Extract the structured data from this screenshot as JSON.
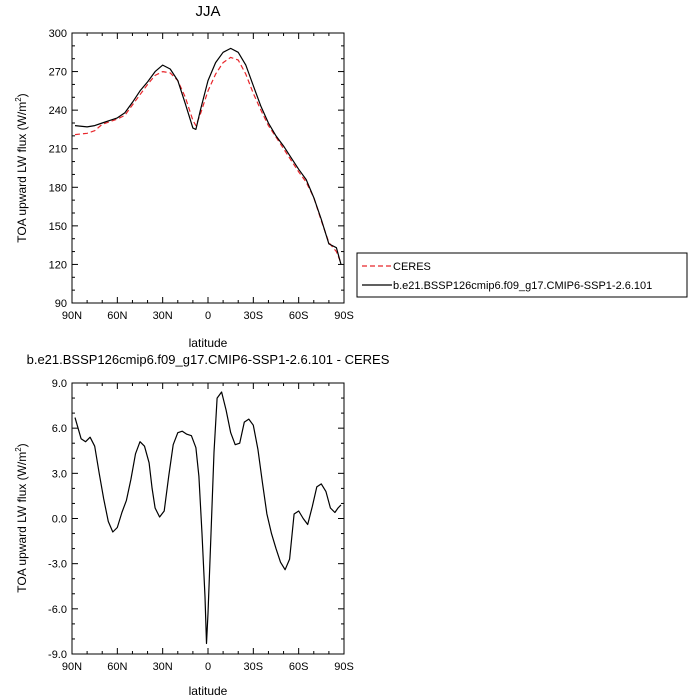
{
  "chart_data": [
    {
      "type": "line",
      "title": "JJA",
      "xlabel": "latitude",
      "ylabel_main": "TOA upward LW flux (W/m",
      "ylabel_sup": "2",
      "ylabel_tail": ")",
      "xlim": [
        90,
        -90
      ],
      "ylim": [
        90,
        300
      ],
      "xticks": [
        90,
        60,
        30,
        0,
        -30,
        -60,
        -90
      ],
      "xtick_labels": [
        "90N",
        "60N",
        "30N",
        "0",
        "30S",
        "60S",
        "90S"
      ],
      "yticks": [
        90,
        120,
        150,
        180,
        210,
        240,
        270,
        300
      ],
      "ytick_labels": [
        "90",
        "120",
        "150",
        "180",
        "210",
        "240",
        "270",
        "300"
      ],
      "legend_position": "right",
      "series": [
        {
          "name": "CERES",
          "color": "#e8262b",
          "dash": "dashed",
          "x": [
            88,
            80,
            75,
            70,
            65,
            60,
            55,
            50,
            45,
            40,
            35,
            30,
            25,
            20,
            15,
            10,
            8,
            5,
            0,
            -5,
            -10,
            -15,
            -20,
            -25,
            -30,
            -35,
            -40,
            -45,
            -50,
            -55,
            -60,
            -65,
            -70,
            -75,
            -80,
            -85,
            -88
          ],
          "y": [
            221,
            222,
            224,
            229,
            231,
            233,
            236,
            244,
            252,
            260,
            267,
            270,
            269,
            263,
            250,
            232,
            228,
            237,
            255,
            268,
            277,
            281,
            279,
            268,
            253,
            240,
            228,
            219,
            210,
            201,
            192,
            184,
            172,
            154,
            137,
            130,
            121
          ]
        },
        {
          "name": "b.e21.BSSP126cmip6.f09_g17.CMIP6-SSP1-2.6.101",
          "color": "#000000",
          "dash": "solid",
          "x": [
            88,
            80,
            75,
            70,
            65,
            60,
            55,
            50,
            45,
            40,
            35,
            30,
            25,
            20,
            15,
            10,
            8,
            5,
            0,
            -5,
            -10,
            -15,
            -20,
            -25,
            -30,
            -35,
            -40,
            -45,
            -50,
            -55,
            -60,
            -65,
            -70,
            -75,
            -80,
            -85,
            -88
          ],
          "y": [
            228,
            227,
            228,
            230,
            232,
            234,
            238,
            246,
            255,
            262,
            270,
            275,
            272,
            263,
            245,
            226,
            225,
            240,
            263,
            277,
            285,
            288,
            285,
            275,
            259,
            243,
            230,
            220,
            212,
            203,
            194,
            186,
            172,
            155,
            136,
            133,
            120
          ]
        }
      ]
    },
    {
      "type": "line",
      "title": "b.e21.BSSP126cmip6.f09_g17.CMIP6-SSP1-2.6.101 - CERES",
      "xlabel": "latitude",
      "ylabel_main": "TOA upward LW flux (W/m",
      "ylabel_sup": "2",
      "ylabel_tail": ")",
      "xlim": [
        90,
        -90
      ],
      "ylim": [
        -9,
        9
      ],
      "xticks": [
        90,
        60,
        30,
        0,
        -30,
        -60,
        -90
      ],
      "xtick_labels": [
        "90N",
        "60N",
        "30N",
        "0",
        "30S",
        "60S",
        "90S"
      ],
      "yticks": [
        -9,
        -6,
        -3,
        0,
        3,
        6,
        9
      ],
      "ytick_labels": [
        "-9.0",
        "-6.0",
        "-3.0",
        "0.0",
        "3.0",
        "6.0",
        "9.0"
      ],
      "series": [
        {
          "color": "#000000",
          "dash": "solid",
          "x": [
            88,
            84,
            81,
            78,
            75,
            72,
            69,
            66,
            63,
            60,
            57,
            54,
            51,
            48,
            45,
            42,
            39,
            37,
            35,
            32,
            29,
            26,
            23,
            20,
            17,
            14,
            11,
            8,
            6,
            4,
            2,
            1,
            0,
            -2,
            -4,
            -6,
            -9,
            -12,
            -15,
            -18,
            -21,
            -24,
            -27,
            -30,
            -33,
            -36,
            -39,
            -42,
            -45,
            -48,
            -51,
            -54,
            -57,
            -60,
            -63,
            -66,
            -69,
            -72,
            -75,
            -78,
            -81,
            -84,
            -86,
            -88
          ],
          "y": [
            6.7,
            5.3,
            5.1,
            5.4,
            4.8,
            3.0,
            1.3,
            -0.2,
            -0.9,
            -0.6,
            0.4,
            1.2,
            2.6,
            4.3,
            5.1,
            4.8,
            3.7,
            2.0,
            0.7,
            0.1,
            0.5,
            2.8,
            4.9,
            5.7,
            5.8,
            5.6,
            5.5,
            4.7,
            2.8,
            -1.0,
            -5.2,
            -8.3,
            -6.3,
            -1.0,
            4.4,
            8.0,
            8.4,
            7.2,
            5.7,
            4.9,
            5.0,
            6.4,
            6.6,
            6.2,
            4.6,
            2.4,
            0.3,
            -1.0,
            -2.0,
            -2.9,
            -3.4,
            -2.7,
            0.3,
            0.5,
            0.0,
            -0.4,
            0.8,
            2.1,
            2.3,
            1.8,
            0.7,
            0.4,
            0.7,
            0.9
          ]
        }
      ]
    }
  ]
}
